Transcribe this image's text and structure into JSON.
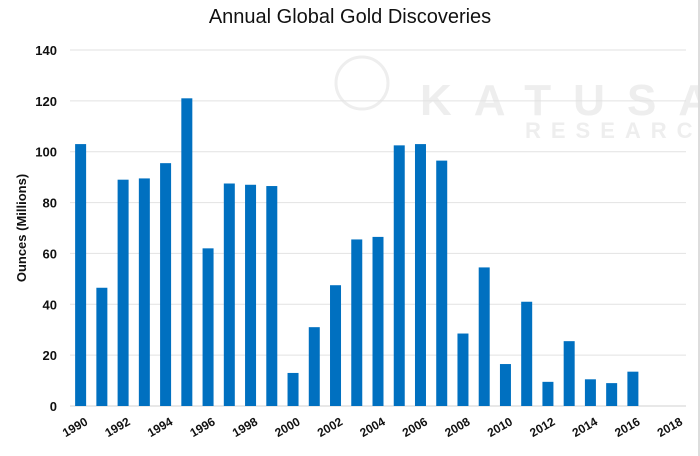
{
  "watermark": {
    "brand": "KATUSA",
    "sub": "RESEARCH"
  },
  "chart_data": {
    "type": "bar",
    "title": "Annual Global Gold Discoveries",
    "xlabel": "",
    "ylabel": "Ounces (Millions)",
    "ylim": [
      0,
      140
    ],
    "yticks": [
      0,
      20,
      40,
      60,
      80,
      100,
      120,
      140
    ],
    "grid": true,
    "color": "#0070c0",
    "categories": [
      "1990",
      "1991",
      "1992",
      "1993",
      "1994",
      "1995",
      "1996",
      "1997",
      "1998",
      "1999",
      "2000",
      "2001",
      "2002",
      "2003",
      "2004",
      "2005",
      "2006",
      "2007",
      "2008",
      "2009",
      "2010",
      "2011",
      "2012",
      "2013",
      "2014",
      "2015",
      "2016",
      "2017",
      "2018"
    ],
    "xtick_labels": [
      "1990",
      "1992",
      "1994",
      "1996",
      "1998",
      "2000",
      "2002",
      "2004",
      "2006",
      "2008",
      "2010",
      "2012",
      "2014",
      "2016",
      "2018"
    ],
    "values": [
      103,
      46.5,
      89,
      89.5,
      95.5,
      121,
      62,
      87.5,
      87,
      86.5,
      13,
      31,
      47.5,
      65.5,
      66.5,
      102.5,
      103,
      96.5,
      28.5,
      54.5,
      16.5,
      41,
      9.5,
      25.5,
      10.5,
      9,
      13.5,
      0,
      0
    ]
  }
}
